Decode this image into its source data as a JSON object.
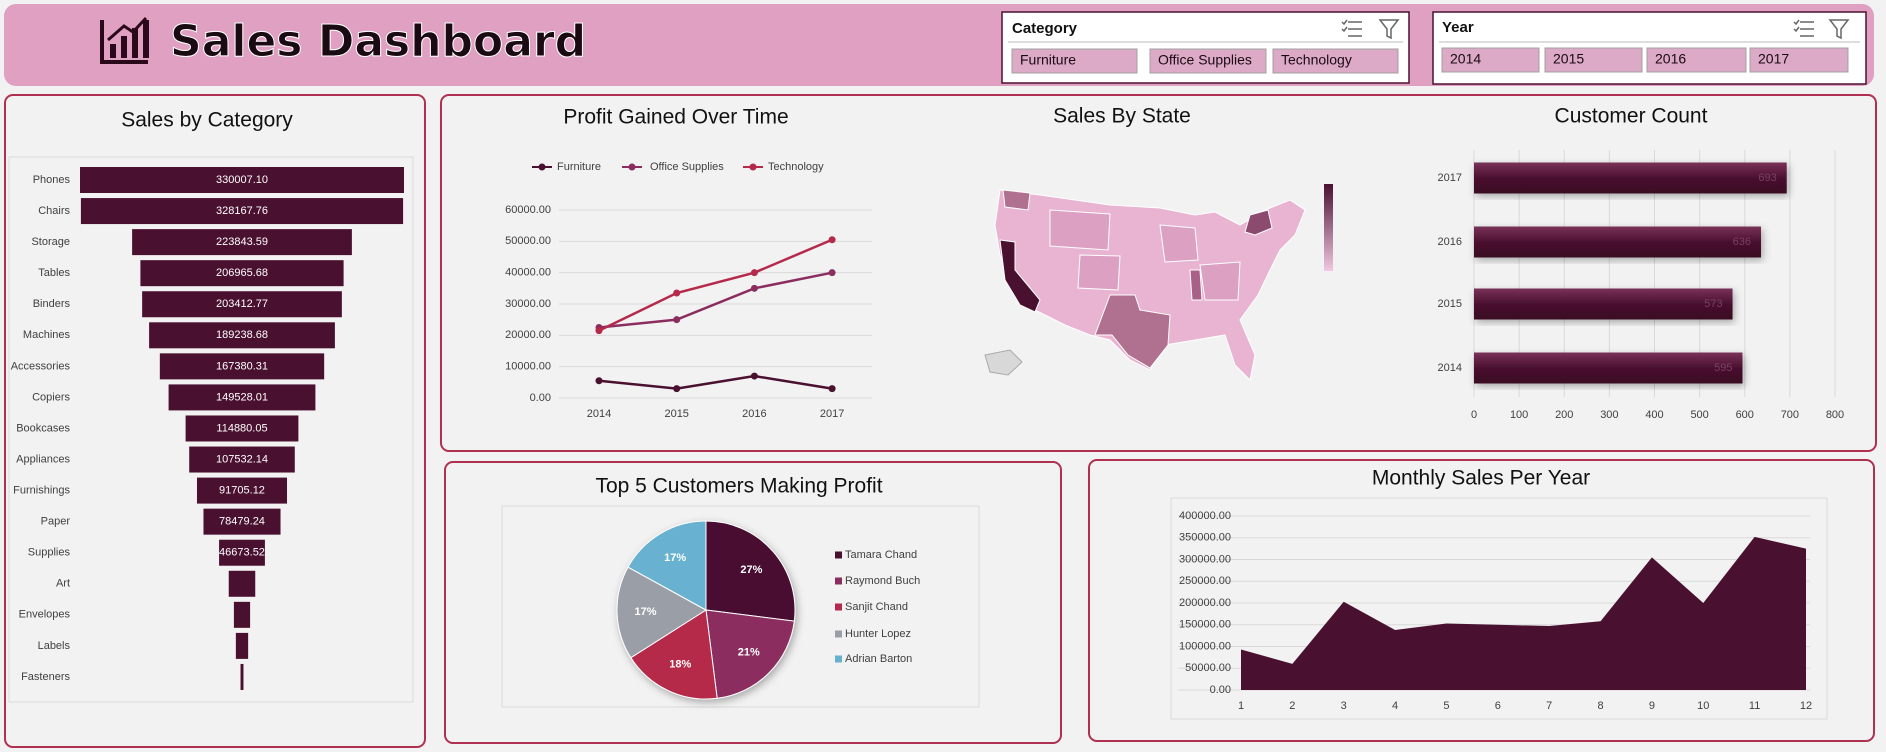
{
  "header": {
    "title": "Sales Dashboard"
  },
  "slicers": [
    {
      "title": "Category",
      "items": [
        "Furniture",
        "Office Supplies",
        "Technology"
      ]
    },
    {
      "title": "Year",
      "items": [
        "2014",
        "2015",
        "2016",
        "2017"
      ]
    }
  ],
  "chart_data": [
    {
      "type": "funnel",
      "title": "Sales by Category",
      "categories": [
        "Phones",
        "Chairs",
        "Storage",
        "Tables",
        "Binders",
        "Machines",
        "Accessories",
        "Copiers",
        "Bookcases",
        "Appliances",
        "Furnishings",
        "Paper",
        "Supplies",
        "Art",
        "Envelopes",
        "Labels",
        "Fasteners"
      ],
      "values": [
        330007.1,
        328167.76,
        223843.59,
        206965.68,
        203412.77,
        189238.68,
        167380.31,
        149528.01,
        114880.05,
        107532.14,
        91705.12,
        78479.24,
        46673.52,
        27000,
        16500,
        12500,
        3000
      ],
      "value_labels": [
        "330007.10",
        "328167.76",
        "223843.59",
        "206965.68",
        "203412.77",
        "189238.68",
        "167380.31",
        "149528.01",
        "114880.05",
        "107532.14",
        "91705.12",
        "78479.24",
        "46673.52",
        null,
        null,
        null,
        null
      ],
      "color": "#4a1030"
    },
    {
      "type": "line",
      "title": "Profit Gained Over Time",
      "categories": [
        "2014",
        "2015",
        "2016",
        "2017"
      ],
      "series": [
        {
          "name": "Furniture",
          "color": "#4a1030",
          "values": [
            5500,
            3000,
            7000,
            3000
          ]
        },
        {
          "name": "Office Supplies",
          "color": "#8b2d5f",
          "values": [
            22500,
            25000,
            35000,
            40000
          ]
        },
        {
          "name": "Technology",
          "color": "#b5294a",
          "values": [
            21500,
            33500,
            40000,
            50500
          ]
        }
      ],
      "ylim": [
        0,
        60000
      ],
      "yticks": [
        {
          "value": 0,
          "label": "0.00"
        },
        {
          "value": 10000,
          "label": "10000.00"
        },
        {
          "value": 20000,
          "label": "20000.00"
        },
        {
          "value": 30000,
          "label": "30000.00"
        },
        {
          "value": 40000,
          "label": "40000.00"
        },
        {
          "value": 50000,
          "label": "50000.00"
        },
        {
          "value": 60000,
          "label": "60000.00"
        }
      ],
      "grid": true,
      "legend": "top"
    },
    {
      "type": "map",
      "title": "Sales By State"
    },
    {
      "type": "bar",
      "orientation": "horizontal",
      "title": "Customer Count",
      "categories": [
        "2017",
        "2016",
        "2015",
        "2014"
      ],
      "values": [
        693,
        636,
        573,
        595
      ],
      "color": "#4a1030",
      "xlim": [
        0,
        800
      ],
      "xticks": [
        0,
        100,
        200,
        300,
        400,
        500,
        600,
        700,
        800
      ],
      "grid": true
    },
    {
      "type": "pie",
      "title": "Top 5 Customers Making Profit",
      "categories": [
        "Tamara Chand",
        "Raymond Buch",
        "Sanjit Chand",
        "Hunter Lopez",
        "Adrian Barton"
      ],
      "values": [
        27,
        21,
        18,
        17,
        17
      ],
      "value_labels": [
        "27%",
        "21%",
        "18%",
        "17%",
        "17%"
      ],
      "colors": [
        "#4a1030",
        "#8b2d5f",
        "#b5294a",
        "#9a9ea6",
        "#67b1d0"
      ],
      "legend": "right"
    },
    {
      "type": "area",
      "title": "Monthly Sales Per Year",
      "x": [
        1,
        2,
        3,
        4,
        5,
        6,
        7,
        8,
        9,
        10,
        11,
        12
      ],
      "values": [
        93000,
        60000,
        203000,
        138000,
        153000,
        150000,
        147000,
        158000,
        305000,
        200000,
        352000,
        325000
      ],
      "color": "#4a1030",
      "xlim": [
        1,
        12
      ],
      "xticks": [
        1,
        2,
        3,
        4,
        5,
        6,
        7,
        8,
        9,
        10,
        11,
        12
      ],
      "ylim": [
        0,
        400000
      ],
      "yticks": [
        {
          "value": 0,
          "label": "0.00"
        },
        {
          "value": 50000,
          "label": "50000.00"
        },
        {
          "value": 100000,
          "label": "100000.00"
        },
        {
          "value": 150000,
          "label": "150000.00"
        },
        {
          "value": 200000,
          "label": "200000.00"
        },
        {
          "value": 250000,
          "label": "250000.00"
        },
        {
          "value": 300000,
          "label": "300000.00"
        },
        {
          "value": 350000,
          "label": "350000.00"
        },
        {
          "value": 400000,
          "label": "400000.00"
        }
      ],
      "grid": true
    }
  ]
}
